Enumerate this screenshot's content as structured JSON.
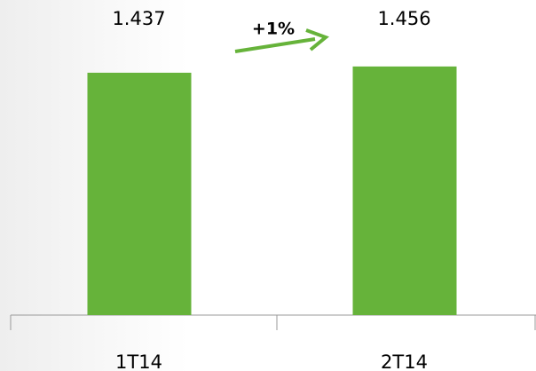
{
  "chart_data": {
    "type": "bar",
    "categories": [
      "1T14",
      "2T14"
    ],
    "values": [
      1.437,
      1.456
    ],
    "color": "#66b33a",
    "ylim": [
      0.7,
      1.5
    ],
    "annotation": "+1%"
  }
}
